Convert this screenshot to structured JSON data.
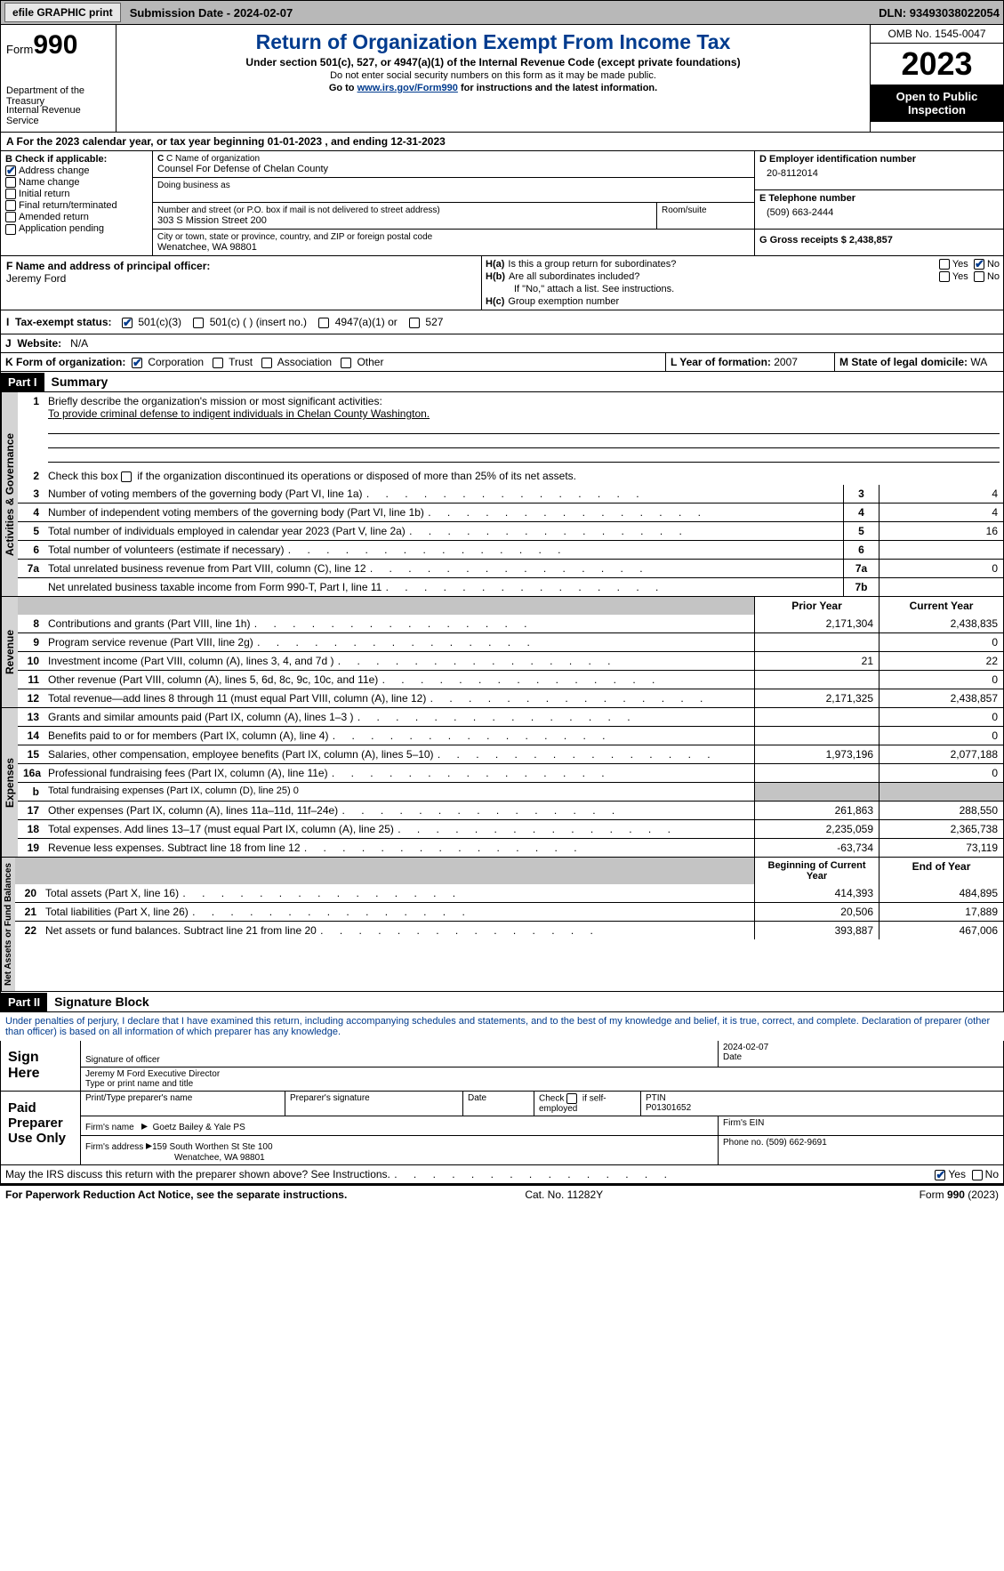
{
  "topbar": {
    "efile": "efile GRAPHIC print",
    "subdate_label": "Submission Date - ",
    "subdate": "2024-02-07",
    "dln_label": "DLN: ",
    "dln": "93493038022054"
  },
  "hdr": {
    "form_pre": "Form",
    "form_num": "990",
    "dept": "Department of the Treasury",
    "irs": "Internal Revenue Service",
    "title": "Return of Organization Exempt From Income Tax",
    "subtitle": "Under section 501(c), 527, or 4947(a)(1) of the Internal Revenue Code (except private foundations)",
    "note1": "Do not enter social security numbers on this form as it may be made public.",
    "note2_pre": "Go to ",
    "note2_link": "www.irs.gov/Form990",
    "note2_post": " for instructions and the latest information.",
    "omb": "OMB No. 1545-0047",
    "year": "2023",
    "pubins": "Open to Public Inspection"
  },
  "lineA": {
    "pre": "A For the 2023 calendar year, or tax year beginning ",
    "beg": "01-01-2023",
    "mid": " , and ending ",
    "end": "12-31-2023"
  },
  "B": {
    "hdr": "B Check if applicable:",
    "items": [
      "Address change",
      "Name change",
      "Initial return",
      "Final return/terminated",
      "Amended return",
      "Application pending"
    ],
    "checked": [
      true,
      false,
      false,
      false,
      false,
      false
    ]
  },
  "C": {
    "name_lbl": "C Name of organization",
    "name": "Counsel For Defense of Chelan County",
    "dba_lbl": "Doing business as",
    "dba": "",
    "addr_lbl": "Number and street (or P.O. box if mail is not delivered to street address)",
    "addr": "303 S Mission Street 200",
    "room_lbl": "Room/suite",
    "city_lbl": "City or town, state or province, country, and ZIP or foreign postal code",
    "city": "Wenatchee, WA  98801"
  },
  "D": {
    "lbl": "D Employer identification number",
    "val": "20-8112014"
  },
  "E": {
    "lbl": "E Telephone number",
    "val": "(509) 663-2444"
  },
  "G": {
    "lbl": "G Gross receipts $ ",
    "val": "2,438,857"
  },
  "F": {
    "lbl": "F  Name and address of principal officer:",
    "name": "Jeremy Ford"
  },
  "H": {
    "a_lbl": "Is this a group return for subordinates?",
    "a_yes": "Yes",
    "a_no": "No",
    "a_val": "No",
    "b_lbl": "Are all subordinates included?",
    "b_note": "If \"No,\" attach a list. See instructions.",
    "c_lbl": "Group exemption number"
  },
  "I": {
    "lbl": "Tax-exempt status:",
    "opts": [
      "501(c)(3)",
      "501(c) (  ) (insert no.)",
      "4947(a)(1) or",
      "527"
    ],
    "sel": 0
  },
  "J": {
    "lbl": "Website:",
    "val": "N/A"
  },
  "K": {
    "lbl": "K Form of organization:",
    "opts": [
      "Corporation",
      "Trust",
      "Association",
      "Other"
    ],
    "sel": 0
  },
  "L": {
    "lbl": "L Year of formation: ",
    "val": "2007"
  },
  "M": {
    "lbl": "M State of legal domicile: ",
    "val": "WA"
  },
  "part1": {
    "label": "Part I",
    "title": "Summary"
  },
  "s1": {
    "lbl": "Briefly describe the organization's mission or most significant activities:",
    "val": "To provide criminal defense to indigent individuals in Chelan County Washington."
  },
  "s2": "Check this box      if the organization discontinued its operations or disposed of more than 25% of its net assets.",
  "govLabel": "Activities & Governance",
  "revLabel": "Revenue",
  "expLabel": "Expenses",
  "netLabel": "Net Assets or Fund Balances",
  "lines": {
    "3": {
      "t": "Number of voting members of the governing body (Part VI, line 1a)",
      "n": "3",
      "v": "4"
    },
    "4": {
      "t": "Number of independent voting members of the governing body (Part VI, line 1b)",
      "n": "4",
      "v": "4"
    },
    "5": {
      "t": "Total number of individuals employed in calendar year 2023 (Part V, line 2a)",
      "n": "5",
      "v": "16"
    },
    "6": {
      "t": "Total number of volunteers (estimate if necessary)",
      "n": "6",
      "v": ""
    },
    "7a": {
      "t": "Total unrelated business revenue from Part VIII, column (C), line 12",
      "n": "7a",
      "v": "0"
    },
    "7b": {
      "t": "Net unrelated business taxable income from Form 990-T, Part I, line 11",
      "n": "7b",
      "v": ""
    }
  },
  "colhdr": {
    "prior": "Prior Year",
    "curr": "Current Year",
    "beg": "Beginning of Current Year",
    "end": "End of Year"
  },
  "rev": [
    {
      "n": "8",
      "t": "Contributions and grants (Part VIII, line 1h)",
      "p": "2,171,304",
      "c": "2,438,835"
    },
    {
      "n": "9",
      "t": "Program service revenue (Part VIII, line 2g)",
      "p": "",
      "c": "0"
    },
    {
      "n": "10",
      "t": "Investment income (Part VIII, column (A), lines 3, 4, and 7d )",
      "p": "21",
      "c": "22"
    },
    {
      "n": "11",
      "t": "Other revenue (Part VIII, column (A), lines 5, 6d, 8c, 9c, 10c, and 11e)",
      "p": "",
      "c": "0"
    },
    {
      "n": "12",
      "t": "Total revenue—add lines 8 through 11 (must equal Part VIII, column (A), line 12)",
      "p": "2,171,325",
      "c": "2,438,857"
    }
  ],
  "exp": [
    {
      "n": "13",
      "t": "Grants and similar amounts paid (Part IX, column (A), lines 1–3 )",
      "p": "",
      "c": "0"
    },
    {
      "n": "14",
      "t": "Benefits paid to or for members (Part IX, column (A), line 4)",
      "p": "",
      "c": "0"
    },
    {
      "n": "15",
      "t": "Salaries, other compensation, employee benefits (Part IX, column (A), lines 5–10)",
      "p": "1,973,196",
      "c": "2,077,188"
    },
    {
      "n": "16a",
      "t": "Professional fundraising fees (Part IX, column (A), line 11e)",
      "p": "",
      "c": "0"
    },
    {
      "n": "b",
      "t": "Total fundraising expenses (Part IX, column (D), line 25) 0",
      "p": "GREY",
      "c": "GREY",
      "small": true
    },
    {
      "n": "17",
      "t": "Other expenses (Part IX, column (A), lines 11a–11d, 11f–24e)",
      "p": "261,863",
      "c": "288,550"
    },
    {
      "n": "18",
      "t": "Total expenses. Add lines 13–17 (must equal Part IX, column (A), line 25)",
      "p": "2,235,059",
      "c": "2,365,738"
    },
    {
      "n": "19",
      "t": "Revenue less expenses. Subtract line 18 from line 12",
      "p": "-63,734",
      "c": "73,119"
    }
  ],
  "net": [
    {
      "n": "20",
      "t": "Total assets (Part X, line 16)",
      "p": "414,393",
      "c": "484,895"
    },
    {
      "n": "21",
      "t": "Total liabilities (Part X, line 26)",
      "p": "20,506",
      "c": "17,889"
    },
    {
      "n": "22",
      "t": "Net assets or fund balances. Subtract line 21 from line 20",
      "p": "393,887",
      "c": "467,006"
    }
  ],
  "part2": {
    "label": "Part II",
    "title": "Signature Block"
  },
  "penalties": "Under penalties of perjury, I declare that I have examined this return, including accompanying schedules and statements, and to the best of my knowledge and belief, it is true, correct, and complete. Declaration of preparer (other than officer) is based on all information of which preparer has any knowledge.",
  "sign": {
    "here": "Sign Here",
    "sig_lbl": "Signature of officer",
    "date_lbl": "Date",
    "date": "2024-02-07",
    "name": "Jeremy M Ford Executive Director",
    "name_lbl": "Type or print name and title"
  },
  "paid": {
    "lbl": "Paid Preparer Use Only",
    "c1": "Print/Type preparer's name",
    "c2": "Preparer's signature",
    "c3": "Date",
    "c4_pre": "Check",
    "c4_post": "if self-employed",
    "c5": "PTIN",
    "ptin": "P01301652",
    "firm_lbl": "Firm's name",
    "firm": "Goetz Bailey & Yale PS",
    "ein_lbl": "Firm's EIN",
    "faddr_lbl": "Firm's address",
    "faddr1": "159 South Worthen St Ste 100",
    "faddr2": "Wenatchee, WA  98801",
    "phone_lbl": "Phone no. ",
    "phone": "(509) 662-9691"
  },
  "discuss": {
    "t": "May the IRS discuss this return with the preparer shown above? See Instructions.",
    "yes": "Yes",
    "no": "No"
  },
  "foot": {
    "l": "For Paperwork Reduction Act Notice, see the separate instructions.",
    "m": "Cat. No. 11282Y",
    "r": "Form 990 (2023)"
  }
}
